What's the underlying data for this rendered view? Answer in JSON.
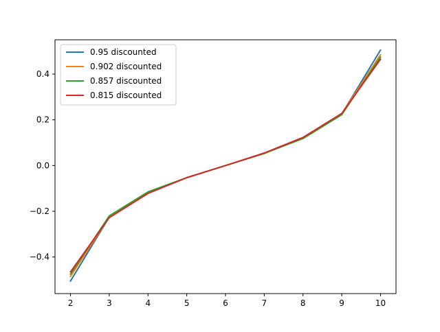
{
  "chart_data": {
    "type": "line",
    "title": "",
    "xlabel": "",
    "ylabel": "",
    "x": [
      2,
      3,
      4,
      5,
      6,
      7,
      8,
      9,
      10
    ],
    "xlim": [
      1.6,
      10.4
    ],
    "ylim": [
      -0.56,
      0.55
    ],
    "xticks": [
      2,
      3,
      4,
      5,
      6,
      7,
      8,
      9,
      10
    ],
    "xtick_labels": [
      "2",
      "3",
      "4",
      "5",
      "6",
      "7",
      "8",
      "9",
      "10"
    ],
    "yticks": [
      -0.4,
      -0.2,
      0.0,
      0.2,
      0.4
    ],
    "ytick_labels": [
      "−0.4",
      "−0.2",
      "0.0",
      "0.2",
      "0.4"
    ],
    "grid": false,
    "legend_position": "top-left",
    "series": [
      {
        "name": "0.95 discounted",
        "color": "#1f77b4",
        "values": [
          -0.505,
          -0.225,
          -0.12,
          -0.053,
          0.0,
          0.053,
          0.12,
          0.225,
          0.505
        ]
      },
      {
        "name": "0.902 discounted",
        "color": "#ff7f0e",
        "values": [
          -0.485,
          -0.225,
          -0.12,
          -0.053,
          0.0,
          0.053,
          0.12,
          0.227,
          0.485
        ]
      },
      {
        "name": "0.857 discounted",
        "color": "#2ca02c",
        "values": [
          -0.475,
          -0.22,
          -0.115,
          -0.053,
          0.0,
          0.053,
          0.118,
          0.222,
          0.475
        ]
      },
      {
        "name": "0.815 discounted",
        "color": "#d62728",
        "values": [
          -0.465,
          -0.228,
          -0.122,
          -0.053,
          0.0,
          0.055,
          0.123,
          0.228,
          0.465
        ]
      }
    ]
  }
}
